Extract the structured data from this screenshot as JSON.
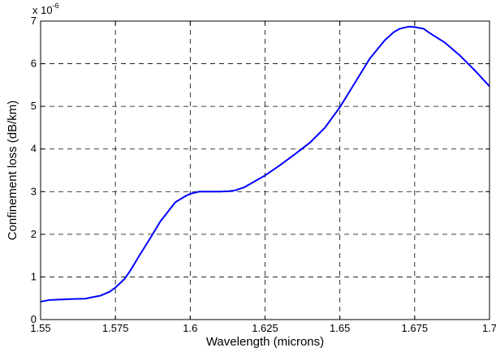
{
  "chart_data": {
    "type": "line",
    "title": "",
    "xlabel": "Wavelength (microns)",
    "ylabel": "Confinement loss (dB/km)",
    "exponent_label": "x 10",
    "exponent_power": "-6",
    "xlim": [
      1.55,
      1.7
    ],
    "ylim": [
      0,
      7
    ],
    "x_ticks": [
      1.55,
      1.575,
      1.6,
      1.625,
      1.65,
      1.675,
      1.7
    ],
    "x_tick_labels": [
      "1.55",
      "1.575",
      "1.6",
      "1.625",
      "1.65",
      "1.675",
      "1.7"
    ],
    "y_ticks": [
      0,
      1,
      2,
      3,
      4,
      5,
      6,
      7
    ],
    "y_tick_labels": [
      "0",
      "1",
      "2",
      "3",
      "4",
      "5",
      "6",
      "7"
    ],
    "grid": true,
    "line_color": "#0000ff",
    "series": [
      {
        "x": [
          1.55,
          1.553,
          1.557,
          1.56,
          1.565,
          1.567,
          1.57,
          1.573,
          1.575,
          1.578,
          1.58,
          1.583,
          1.587,
          1.59,
          1.595,
          1.598,
          1.6,
          1.603,
          1.605,
          1.608,
          1.61,
          1.613,
          1.615,
          1.618,
          1.62,
          1.625,
          1.63,
          1.635,
          1.64,
          1.645,
          1.65,
          1.655,
          1.66,
          1.665,
          1.668,
          1.67,
          1.673,
          1.675,
          1.678,
          1.68,
          1.685,
          1.69,
          1.695,
          1.7
        ],
        "y": [
          0.42,
          0.46,
          0.47,
          0.48,
          0.49,
          0.52,
          0.56,
          0.65,
          0.75,
          0.95,
          1.15,
          1.5,
          1.95,
          2.3,
          2.75,
          2.88,
          2.95,
          3.0,
          3.0,
          3.0,
          3.0,
          3.01,
          3.03,
          3.1,
          3.18,
          3.38,
          3.62,
          3.88,
          4.15,
          4.5,
          4.98,
          5.55,
          6.12,
          6.55,
          6.74,
          6.82,
          6.87,
          6.86,
          6.82,
          6.72,
          6.5,
          6.2,
          5.85,
          5.47
        ]
      }
    ]
  }
}
